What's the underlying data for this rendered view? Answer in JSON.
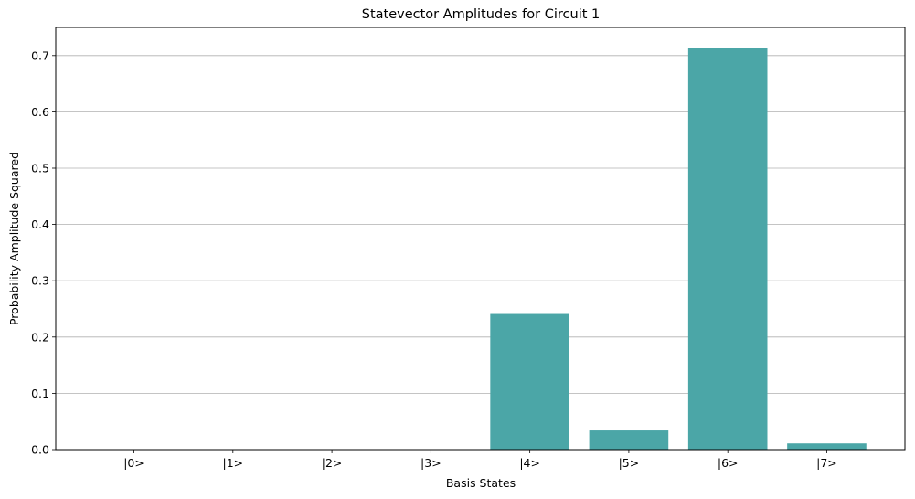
{
  "chart_data": {
    "type": "bar",
    "title": "Statevector Amplitudes for Circuit 1",
    "xlabel": "Basis States",
    "ylabel": "Probability Amplitude Squared",
    "categories": [
      "|0>",
      "|1>",
      "|2>",
      "|3>",
      "|4>",
      "|5>",
      "|6>",
      "|7>"
    ],
    "values": [
      0,
      0,
      0,
      0,
      0.241,
      0.034,
      0.713,
      0.011
    ],
    "ylim": [
      0,
      0.75
    ],
    "yticks": [
      0.0,
      0.1,
      0.2,
      0.3,
      0.4,
      0.5,
      0.6,
      0.7
    ],
    "ytick_labels": [
      "0.0",
      "0.1",
      "0.2",
      "0.3",
      "0.4",
      "0.5",
      "0.6",
      "0.7"
    ],
    "grid": "y",
    "bar_color": "#4ba6a7",
    "grid_color": "#b0b0b0"
  }
}
